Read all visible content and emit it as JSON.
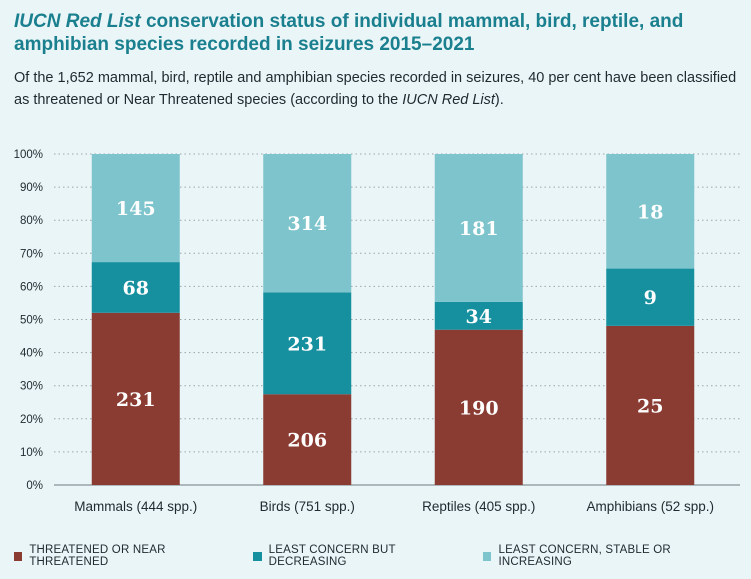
{
  "title_italic": "IUCN Red List",
  "title_rest": " conservation status of individual mammal, bird, reptile, and amphibian species recorded in seizures 2015–2021",
  "subtitle_part1": "Of the 1,652 mammal, bird, reptile and amphibian species recorded in seizures, 40 per cent have been classified as threatened or Near Threatened species (according to the ",
  "subtitle_italic": "IUCN Red List",
  "subtitle_part3": ").",
  "colors": {
    "threatened": "#8a3b32",
    "decreasing": "#16909f",
    "stable": "#7dc4cc",
    "background": "#eaf5f7",
    "grid": "#9aa6aa"
  },
  "chart_data": {
    "type": "bar",
    "stacked": "percent",
    "categories": [
      "Mammals (444 spp.)",
      "Birds (751 spp.)",
      "Reptiles (405 spp.)",
      "Amphibians (52 spp.)"
    ],
    "series": [
      {
        "name": "THREATENED OR NEAR THREATENED",
        "color": "#8a3b32",
        "values": [
          231,
          206,
          190,
          25
        ]
      },
      {
        "name": "LEAST CONCERN BUT DECREASING",
        "color": "#16909f",
        "values": [
          68,
          231,
          34,
          9
        ]
      },
      {
        "name": "LEAST CONCERN, STABLE OR INCREASING",
        "color": "#7dc4cc",
        "values": [
          145,
          314,
          181,
          18
        ]
      }
    ],
    "y_ticks": [
      "0%",
      "10%",
      "20%",
      "30%",
      "40%",
      "50%",
      "60%",
      "70%",
      "80%",
      "90%",
      "100%"
    ],
    "ylim": [
      0,
      100
    ],
    "grid": true,
    "legend_position": "bottom"
  }
}
